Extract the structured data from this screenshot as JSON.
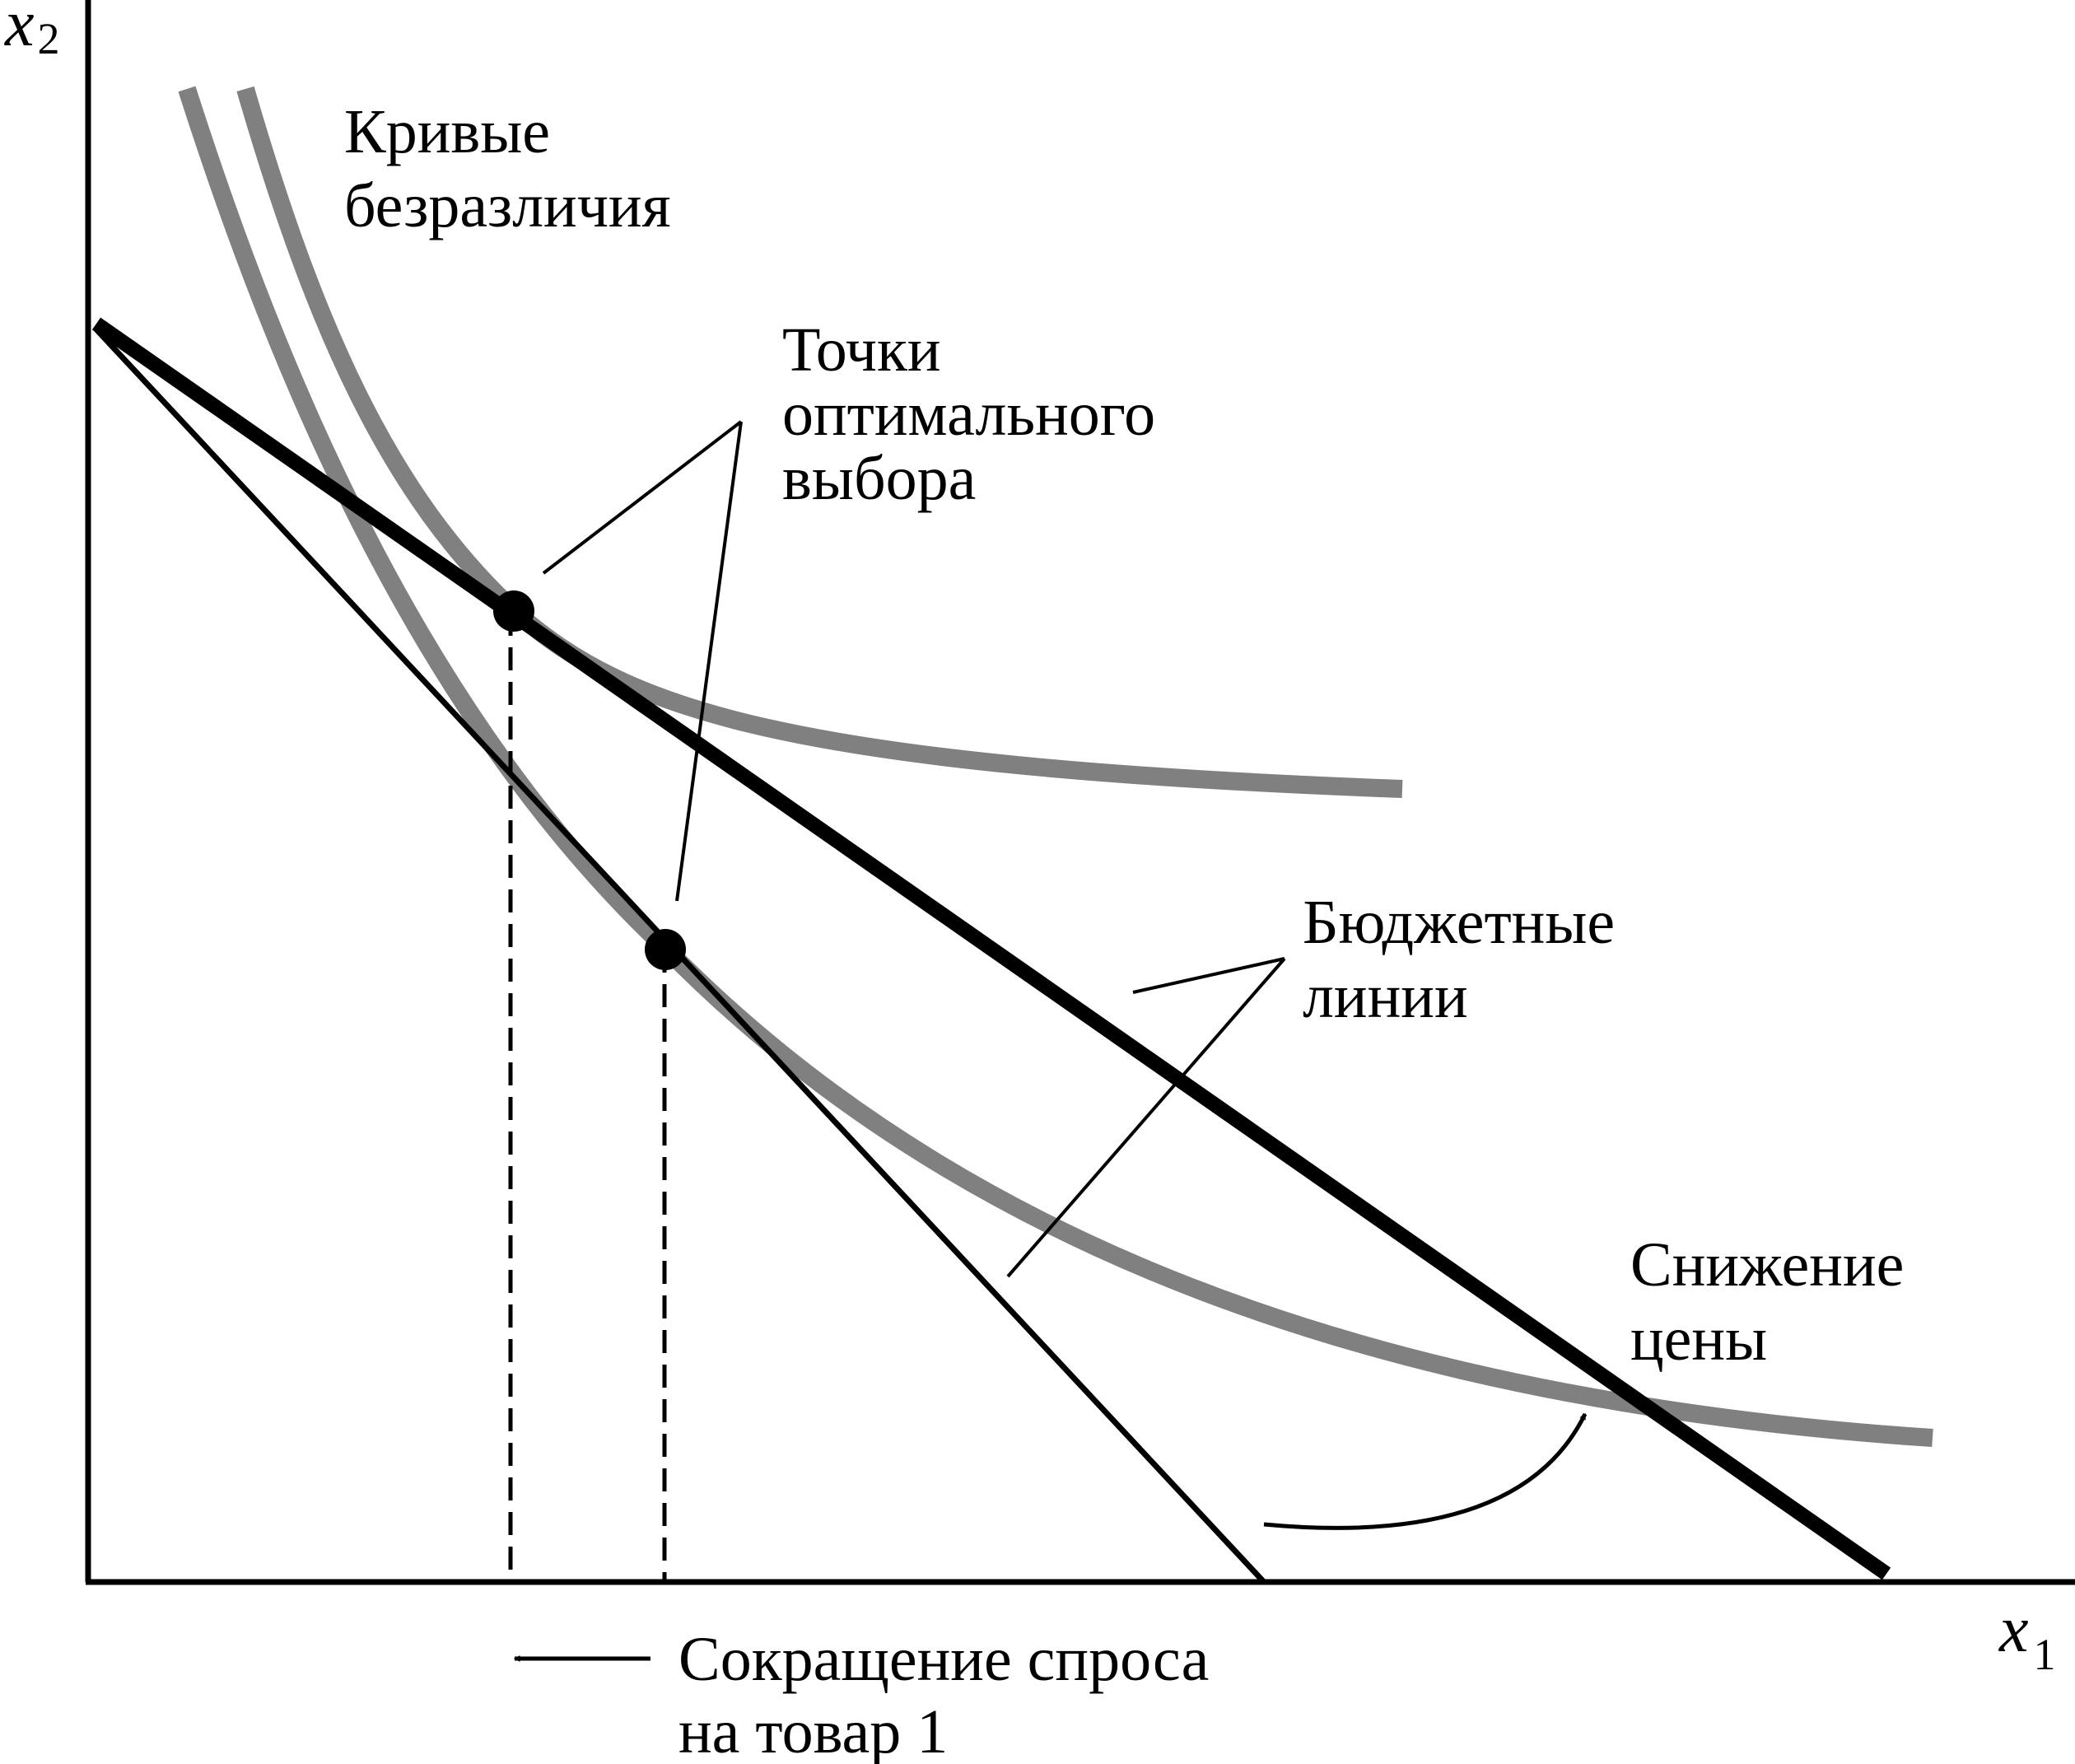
{
  "axes": {
    "x_var": "x",
    "x_sub": "1",
    "y_var": "x",
    "y_sub": "2"
  },
  "labels": {
    "indifference_curves": [
      "Кривые",
      "безразличия"
    ],
    "optimal_points": [
      "Точки",
      "оптимального",
      "выбора"
    ],
    "budget_lines": [
      "Бюджетные",
      "линии"
    ],
    "price_decrease": [
      "Снижение",
      "цены"
    ],
    "demand_decrease": [
      "Сокращение спроса",
      "на товар 1"
    ]
  },
  "colors": {
    "axis": "#000000",
    "indifference_curve": "#808080",
    "budget_line": "#000000",
    "optimal_point": "#000000"
  }
}
